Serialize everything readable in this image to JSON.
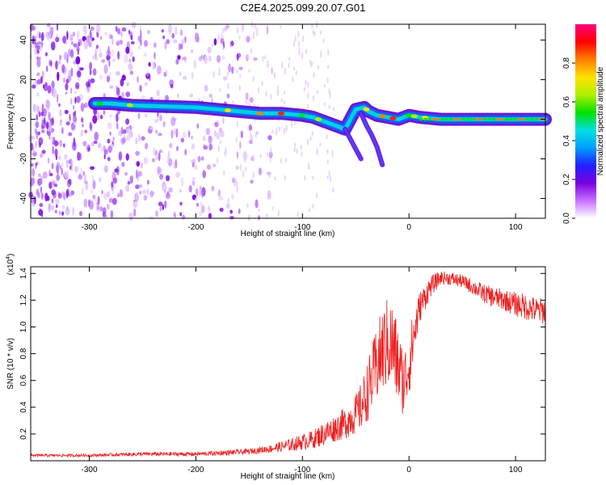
{
  "title": "C2E4.2025.099.20.07.G01",
  "chart_data": [
    {
      "type": "heatmap",
      "xlabel": "Height of straight line (km)",
      "ylabel": "Frequency (Hz)",
      "xlim": [
        -355,
        128
      ],
      "ylim": [
        -50,
        48
      ],
      "xticks": [
        -300,
        -200,
        -100,
        0,
        100
      ],
      "xtick_labels": [
        "-300",
        "-200",
        "-100",
        "0",
        "100"
      ],
      "yticks": [
        -40,
        -20,
        0,
        20,
        40
      ],
      "ytick_labels": [
        "-40",
        "-20",
        "0",
        "20",
        "40"
      ],
      "colorbar": {
        "label": "Normalized spectral amplitude",
        "range": [
          0,
          1
        ],
        "ticks": [
          0.0,
          0.2,
          0.4,
          0.6,
          0.8
        ],
        "tick_labels": [
          "0.0",
          "0.2",
          "0.4",
          "0.6",
          "0.8"
        ],
        "colors": [
          "#ffffff",
          "#c870ff",
          "#7a00e0",
          "#2020ff",
          "#00a0ff",
          "#00e0e0",
          "#00e000",
          "#b0f000",
          "#ffe000",
          "#ff8000",
          "#ff0000",
          "#ff0080"
        ]
      },
      "ridge": {
        "x": [
          -295,
          -280,
          -260,
          -200,
          -180,
          -160,
          -140,
          -120,
          -100,
          -90,
          -80,
          -70,
          -60,
          -50,
          -42,
          -38,
          -30,
          -20,
          -10,
          0,
          10,
          30,
          60,
          90,
          128
        ],
        "freq": [
          8,
          8,
          7,
          6,
          5,
          4,
          3,
          3,
          2,
          1,
          -1,
          -3,
          -5,
          5,
          6,
          4,
          2,
          1,
          0,
          2,
          1,
          0,
          0,
          0,
          0
        ]
      },
      "branches": [
        {
          "x": [
            -60,
            -55,
            -50,
            -45
          ],
          "freq": [
            -5,
            -10,
            -15,
            -20
          ]
        },
        {
          "x": [
            -45,
            -40,
            -35,
            -30,
            -25
          ],
          "freq": [
            3,
            -3,
            -8,
            -14,
            -23
          ]
        }
      ],
      "grid": false
    },
    {
      "type": "line",
      "xlabel": "Height of straight line (km)",
      "ylabel": "SNR (10 * v/v)",
      "y_multiplier": "(x10",
      "y_multiplier_exp": "4",
      "y_multiplier_close": ")",
      "xlim": [
        -355,
        128
      ],
      "ylim": [
        0,
        1.45
      ],
      "xticks": [
        -300,
        -200,
        -100,
        0,
        100
      ],
      "xtick_labels": [
        "-300",
        "-200",
        "-100",
        "0",
        "100"
      ],
      "yticks": [
        0.2,
        0.4,
        0.6,
        0.8,
        1.0,
        1.2,
        1.4
      ],
      "ytick_labels": [
        "0.2",
        "0.4",
        "0.6",
        "0.8",
        "1.0",
        "1.2",
        "1.4"
      ],
      "series": [
        {
          "color": "#ee2020",
          "x": [
            -355,
            -300,
            -250,
            -200,
            -170,
            -150,
            -130,
            -110,
            -90,
            -80,
            -70,
            -60,
            -50,
            -45,
            -40,
            -35,
            -30,
            -25,
            -20,
            -15,
            -10,
            -5,
            0,
            5,
            10,
            20,
            30,
            40,
            50,
            60,
            70,
            80,
            90,
            100,
            110,
            120,
            128
          ],
          "y": [
            0.04,
            0.04,
            0.05,
            0.05,
            0.06,
            0.07,
            0.09,
            0.12,
            0.16,
            0.2,
            0.24,
            0.28,
            0.35,
            0.4,
            0.5,
            0.6,
            0.72,
            0.82,
            0.88,
            0.85,
            0.7,
            0.58,
            0.72,
            0.95,
            1.15,
            1.3,
            1.37,
            1.36,
            1.34,
            1.3,
            1.25,
            1.22,
            1.2,
            1.17,
            1.15,
            1.12,
            1.12
          ],
          "noise": [
            0.01,
            0.01,
            0.015,
            0.015,
            0.02,
            0.02,
            0.03,
            0.05,
            0.07,
            0.09,
            0.1,
            0.12,
            0.15,
            0.18,
            0.22,
            0.25,
            0.3,
            0.32,
            0.35,
            0.35,
            0.3,
            0.25,
            0.25,
            0.2,
            0.12,
            0.08,
            0.05,
            0.05,
            0.05,
            0.06,
            0.07,
            0.08,
            0.08,
            0.09,
            0.1,
            0.1,
            0.1
          ]
        }
      ],
      "grid": false
    }
  ]
}
